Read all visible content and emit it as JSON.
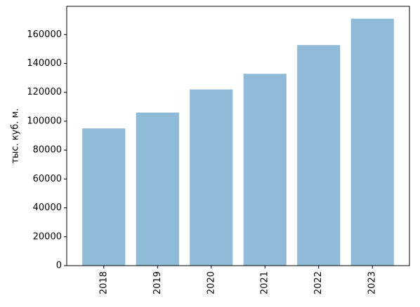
{
  "chart_data": {
    "type": "bar",
    "y_label": "тыс. куб. м.",
    "categories": [
      "2018",
      "2019",
      "2020",
      "2021",
      "2022",
      "2023"
    ],
    "values": [
      95000,
      106000,
      122000,
      132800,
      152700,
      171000
    ],
    "color": "#8fbbd9",
    "ylim": [
      0,
      179550
    ],
    "yticks": [
      0,
      20000,
      40000,
      60000,
      80000,
      100000,
      120000,
      140000,
      160000
    ],
    "grid": false
  }
}
